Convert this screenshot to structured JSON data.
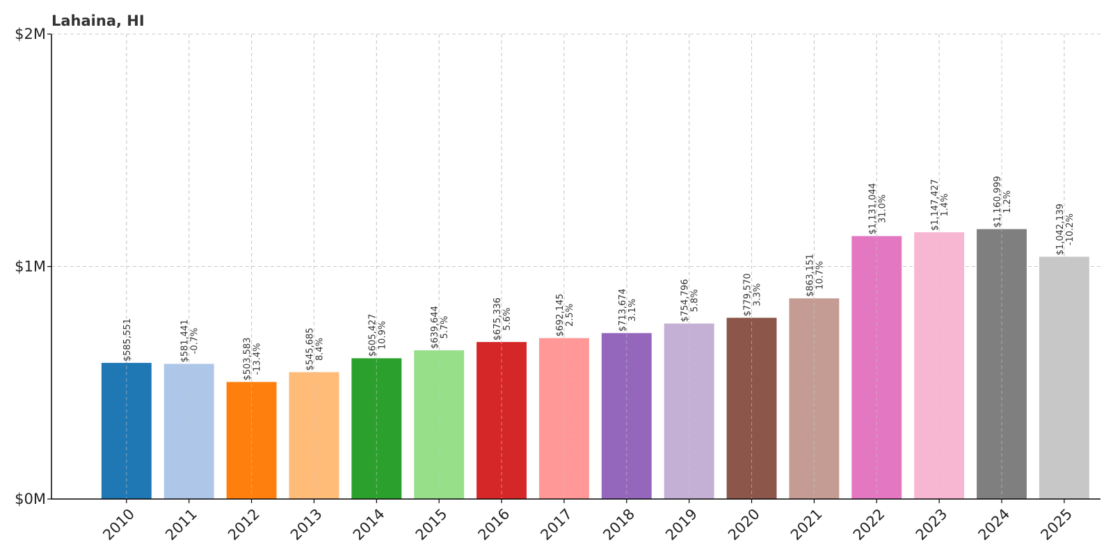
{
  "chart_data": {
    "type": "bar",
    "title": "Lahaina, HI",
    "xlabel": "",
    "ylabel": "",
    "ylim": [
      0,
      2000000
    ],
    "yticks": [
      {
        "value": 0,
        "label": "$0M"
      },
      {
        "value": 1000000,
        "label": "$1M"
      },
      {
        "value": 2000000,
        "label": "$2M"
      }
    ],
    "grid": true,
    "legend": "none",
    "categories": [
      "2010",
      "2011",
      "2012",
      "2013",
      "2014",
      "2015",
      "2016",
      "2017",
      "2018",
      "2019",
      "2020",
      "2021",
      "2022",
      "2023",
      "2024",
      "2025"
    ],
    "values": [
      585551,
      581441,
      503583,
      545685,
      605427,
      639644,
      675336,
      692145,
      713674,
      754796,
      779570,
      863151,
      1131044,
      1147427,
      1160999,
      1042139
    ],
    "value_labels": [
      "$585,551",
      "$581,441",
      "$503,583",
      "$545,685",
      "$605,427",
      "$639,644",
      "$675,336",
      "$692,145",
      "$713,674",
      "$754,796",
      "$779,570",
      "$863,151",
      "$1,131,044",
      "$1,147,427",
      "$1,160,999",
      "$1,042,139"
    ],
    "change_labels": [
      "",
      "-0.7%",
      "-13.4%",
      "8.4%",
      "10.9%",
      "5.7%",
      "5.6%",
      "2.5%",
      "3.1%",
      "5.8%",
      "3.3%",
      "10.7%",
      "31.0%",
      "1.4%",
      "1.2%",
      "-10.2%"
    ],
    "colors": [
      "#1f77b4",
      "#aec7e8",
      "#ff7f0e",
      "#ffbb78",
      "#2ca02c",
      "#98df8a",
      "#d62728",
      "#ff9896",
      "#9467bd",
      "#c5b0d5",
      "#8c564b",
      "#c49c94",
      "#e377c2",
      "#f7b6d2",
      "#7f7f7f",
      "#c7c7c7"
    ]
  }
}
